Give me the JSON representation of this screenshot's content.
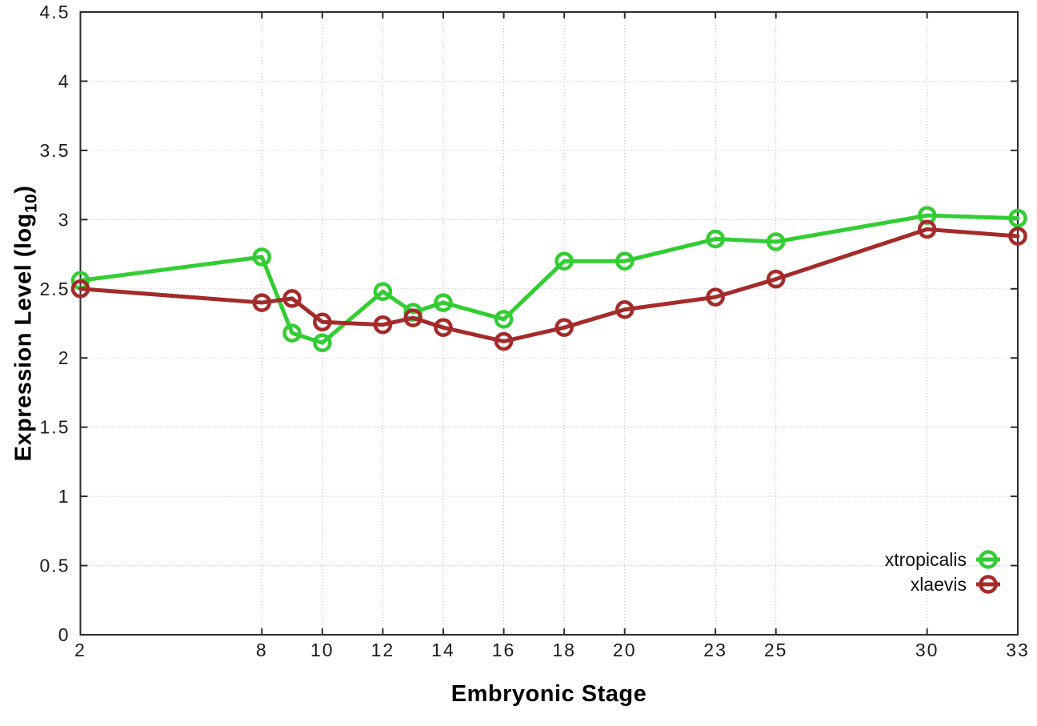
{
  "figure": {
    "background": "#ffffff",
    "title": ""
  },
  "chart_data": {
    "type": "line",
    "title": "",
    "xlabel": "Embryonic Stage",
    "ylabel": "Expression Level (log10)",
    "x": [
      2,
      8,
      9,
      10,
      12,
      13,
      14,
      16,
      18,
      20,
      23,
      25,
      30,
      33
    ],
    "series": [
      {
        "name": "xtropicalis",
        "color": "#32cd32",
        "values": [
          2.56,
          2.73,
          2.18,
          2.11,
          2.48,
          2.33,
          2.4,
          2.28,
          2.7,
          2.7,
          2.86,
          2.84,
          3.03,
          3.01
        ]
      },
      {
        "name": "xlaevis",
        "color": "#a52a2a",
        "values": [
          2.5,
          2.4,
          2.43,
          2.26,
          2.24,
          2.29,
          2.22,
          2.12,
          2.22,
          2.35,
          2.44,
          2.57,
          2.93,
          2.88
        ]
      }
    ],
    "x_ticks": [
      2,
      8,
      10,
      12,
      14,
      16,
      18,
      20,
      23,
      25,
      30,
      33
    ],
    "y_ticks": [
      0,
      0.5,
      1,
      1.5,
      2,
      2.5,
      3,
      3.5,
      4,
      4.5
    ],
    "xlim": [
      2,
      33
    ],
    "ylim": [
      0,
      4.5
    ],
    "grid": true,
    "grid_style": "dotted",
    "grid_color": "#b4b4b4",
    "axis_color": "#2d2d2d",
    "tick_label_color": "#1c1c1c",
    "marker": "open-circle",
    "legend_position": "inside-bottom-right"
  }
}
